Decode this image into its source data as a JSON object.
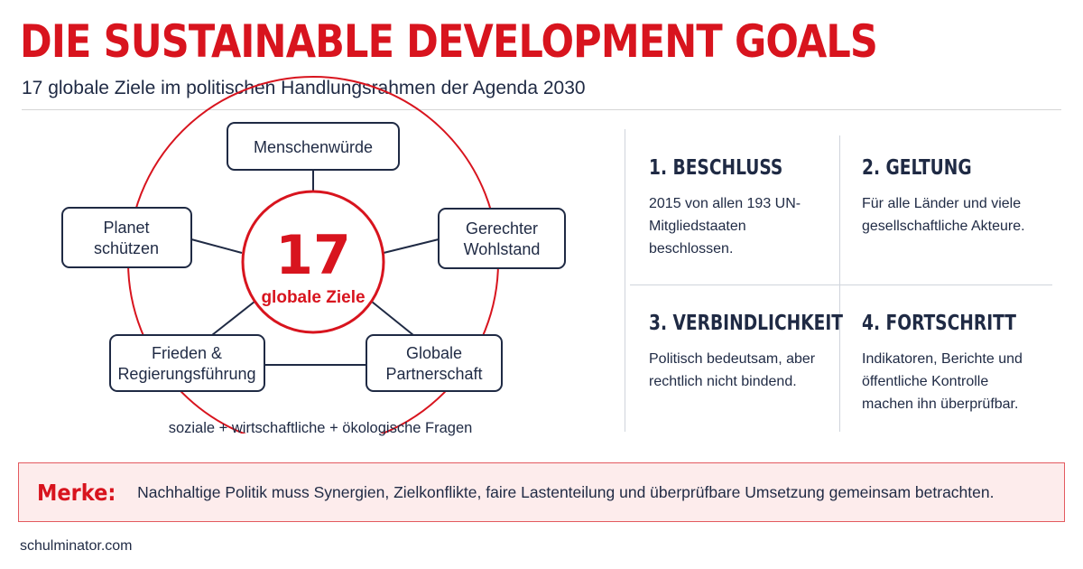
{
  "header": {
    "title": "DIE SUSTAINABLE DEVELOPMENT GOALS",
    "subtitle": "17 globale Ziele im politischen Handlungsrahmen der Agenda 2030"
  },
  "diagram": {
    "center_number": "17",
    "center_label": "globale Ziele",
    "nodes": [
      {
        "lines": [
          "Menschenwürde"
        ]
      },
      {
        "lines": [
          "Gerechter",
          "Wohlstand"
        ]
      },
      {
        "lines": [
          "Globale",
          "Partnerschaft"
        ]
      },
      {
        "lines": [
          "Frieden &",
          "Regierungsführung"
        ]
      },
      {
        "lines": [
          "Planet",
          "schützen"
        ]
      }
    ],
    "footer": "soziale + wirtschaftliche + ökologische Fragen",
    "colors": {
      "accent": "#d8141e",
      "navy": "#1f2a44"
    }
  },
  "cards": [
    {
      "title": "1. BESCHLUSS",
      "text": "2015 von allen 193 UN-Mitgliedstaaten beschlossen."
    },
    {
      "title": "2. GELTUNG",
      "text": "Für alle Länder und viele gesellschaftliche Akteure."
    },
    {
      "title": "3. VERBINDLICHKEIT",
      "text": "Politisch bedeutsam, aber rechtlich nicht bindend."
    },
    {
      "title": "4. FORTSCHRITT",
      "text": "Indikatoren, Berichte und öffentliche Kontrolle machen ihn überprüfbar."
    }
  ],
  "note": {
    "label": "Merke:",
    "text": "Nachhaltige Politik muss Synergien, Zielkonflikte, faire Lastenteilung und überprüfbare Umsetzung gemeinsam betrachten."
  },
  "brand": "schulminator.com"
}
